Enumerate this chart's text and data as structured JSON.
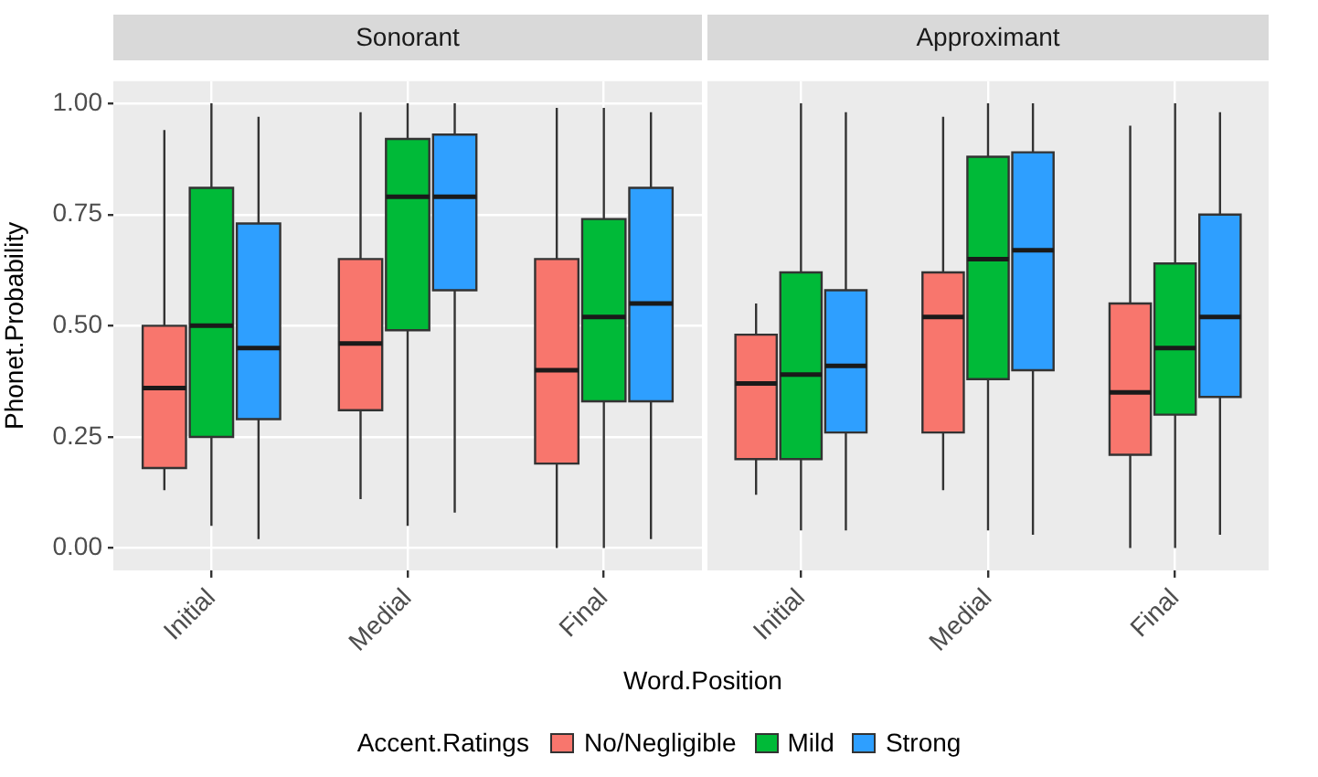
{
  "chart_data": [
    {
      "type": "box",
      "title": "Sonorant",
      "ylabel": "Phonet.Probability",
      "xlabel": "Word.Position",
      "legend_title": "Accent.Ratings",
      "legend": "bottom",
      "grid": true,
      "categories": [
        "Initial",
        "Medial",
        "Final"
      ],
      "ylim": [
        -0.05,
        1.05
      ],
      "yticks": [
        {
          "value": 0,
          "label": "0.00"
        },
        {
          "value": 0.25,
          "label": "0.25"
        },
        {
          "value": 0.5,
          "label": "0.50"
        },
        {
          "value": 0.75,
          "label": "0.75"
        },
        {
          "value": 1,
          "label": "1.00"
        }
      ],
      "series": [
        {
          "name": "No/Negligible",
          "color": "#f8766d",
          "boxes": [
            {
              "low": 0.13,
              "q1": 0.18,
              "median": 0.36,
              "q3": 0.5,
              "high": 0.94
            },
            {
              "low": 0.11,
              "q1": 0.31,
              "median": 0.46,
              "q3": 0.65,
              "high": 0.98
            },
            {
              "low": 0,
              "q1": 0.19,
              "median": 0.4,
              "q3": 0.65,
              "high": 0.99
            }
          ]
        },
        {
          "name": "Mild",
          "color": "#00ba38",
          "boxes": [
            {
              "low": 0.05,
              "q1": 0.25,
              "median": 0.5,
              "q3": 0.81,
              "high": 1
            },
            {
              "low": 0.05,
              "q1": 0.49,
              "median": 0.79,
              "q3": 0.92,
              "high": 1
            },
            {
              "low": 0,
              "q1": 0.33,
              "median": 0.52,
              "q3": 0.74,
              "high": 0.99
            }
          ]
        },
        {
          "name": "Strong",
          "color": "#2e9fff",
          "boxes": [
            {
              "low": 0.02,
              "q1": 0.29,
              "median": 0.45,
              "q3": 0.73,
              "high": 0.97
            },
            {
              "low": 0.08,
              "q1": 0.58,
              "median": 0.79,
              "q3": 0.93,
              "high": 1
            },
            {
              "low": 0.02,
              "q1": 0.33,
              "median": 0.55,
              "q3": 0.81,
              "high": 0.98
            }
          ]
        }
      ]
    },
    {
      "type": "box",
      "title": "Approximant",
      "grid": true,
      "tick_labels": "x",
      "categories": [
        "Initial",
        "Medial",
        "Final"
      ],
      "ylim": [
        -0.05,
        1.05
      ],
      "yticks": [
        {
          "value": 0,
          "label": null
        },
        {
          "value": 0.25,
          "label": null
        },
        {
          "value": 0.5,
          "label": null
        },
        {
          "value": 0.75,
          "label": null
        },
        {
          "value": 1,
          "label": null
        }
      ],
      "series": [
        {
          "color": "#f8766d",
          "boxes": [
            {
              "low": 0.12,
              "q1": 0.2,
              "median": 0.37,
              "q3": 0.48,
              "high": 0.55
            },
            {
              "low": 0.13,
              "q1": 0.26,
              "median": 0.52,
              "q3": 0.62,
              "high": 0.97
            },
            {
              "low": 0,
              "q1": 0.21,
              "median": 0.35,
              "q3": 0.55,
              "high": 0.95
            }
          ]
        },
        {
          "color": "#00ba38",
          "boxes": [
            {
              "low": 0.04,
              "q1": 0.2,
              "median": 0.39,
              "q3": 0.62,
              "high": 1
            },
            {
              "low": 0.04,
              "q1": 0.38,
              "median": 0.65,
              "q3": 0.88,
              "high": 1
            },
            {
              "low": 0,
              "q1": 0.3,
              "median": 0.45,
              "q3": 0.64,
              "high": 1
            }
          ]
        },
        {
          "color": "#2e9fff",
          "boxes": [
            {
              "low": 0.04,
              "q1": 0.26,
              "median": 0.41,
              "q3": 0.58,
              "high": 0.98
            },
            {
              "low": 0.03,
              "q1": 0.4,
              "median": 0.67,
              "q3": 0.89,
              "high": 1
            },
            {
              "low": 0.03,
              "q1": 0.34,
              "median": 0.52,
              "q3": 0.75,
              "high": 0.98
            }
          ]
        }
      ]
    }
  ]
}
